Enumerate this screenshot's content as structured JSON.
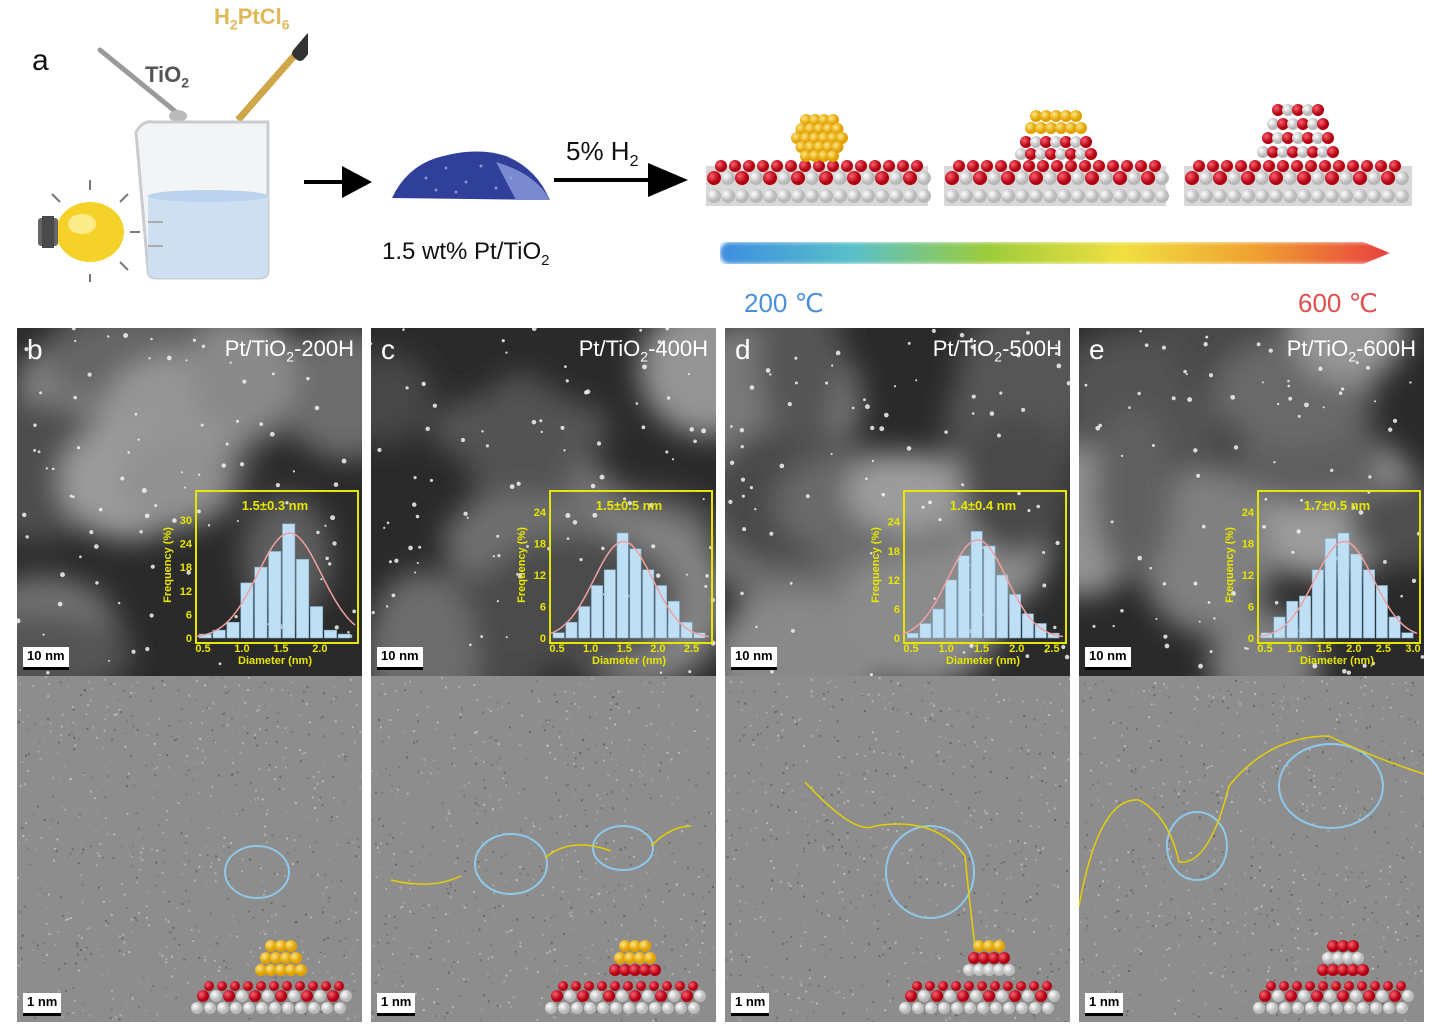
{
  "panel_a": {
    "letter": "a",
    "precursor": "H2PtCl6",
    "support": "TiO2",
    "gas_label": "5% H",
    "gas_sub": "2",
    "product_label_main": "1.5 wt% Pt/TiO",
    "product_label_sub": "2",
    "temp_low": "200 ℃",
    "temp_high": "600 ℃",
    "colors": {
      "low": "#4a90d9",
      "high": "#e05050",
      "pt": "#f2b800",
      "oxygen": "#d01020",
      "ti": "#e8e8e8"
    }
  },
  "panels": [
    {
      "letter": "b",
      "title_main": "Pt/TiO",
      "title_sub": "2",
      "title_tail": "-200H",
      "mean": "1.5±0.3 nm",
      "xticks": [
        "0.5",
        "1.0",
        "1.5",
        "2.0"
      ],
      "yticks": [
        "0",
        "6",
        "12",
        "18",
        "24",
        "30"
      ],
      "bars": [
        1,
        2,
        4,
        14,
        18,
        22,
        29,
        20,
        8,
        2,
        1
      ],
      "ymax": 32,
      "xmin": 0.5,
      "xmax": 2.4
    },
    {
      "letter": "c",
      "title_main": "Pt/TiO",
      "title_sub": "2",
      "title_tail": "-400H",
      "mean": "1.5±0.5 nm",
      "xticks": [
        "0.5",
        "1.0",
        "1.5",
        "2.0",
        "2.5"
      ],
      "yticks": [
        "0",
        "6",
        "12",
        "18",
        "24"
      ],
      "bars": [
        1,
        3,
        6,
        10,
        13,
        20,
        17,
        13,
        10,
        7,
        3,
        1
      ],
      "ymax": 24,
      "xmin": 0.5,
      "xmax": 2.7
    },
    {
      "letter": "d",
      "title_main": "Pt/TiO",
      "title_sub": "2",
      "title_tail": "-500H",
      "mean": "1.4±0.4 nm",
      "xticks": [
        "0.5",
        "1.0",
        "1.5",
        "2.0",
        "2.5"
      ],
      "yticks": [
        "0",
        "6",
        "12",
        "18",
        "24"
      ],
      "bars": [
        1,
        3,
        6,
        12,
        17,
        22,
        19,
        13,
        9,
        5,
        3,
        1
      ],
      "ymax": 26,
      "xmin": 0.5,
      "xmax": 2.6
    },
    {
      "letter": "e",
      "title_main": "Pt/TiO",
      "title_sub": "2",
      "title_tail": "-600H",
      "mean": "1.7±0.5 nm",
      "xticks": [
        "0.5",
        "1.0",
        "1.5",
        "2.0",
        "2.5",
        "3.0"
      ],
      "yticks": [
        "0",
        "6",
        "12",
        "18",
        "24"
      ],
      "bars": [
        1,
        4,
        7,
        8,
        13,
        19,
        20,
        16,
        13,
        10,
        4,
        1
      ],
      "ymax": 24,
      "xmin": 0.5,
      "xmax": 3.0
    }
  ],
  "hist_axes": {
    "xlabel": "Diameter (nm)",
    "ylabel": "Frequency (%)"
  },
  "scalebar_stem": "10 nm",
  "scalebar_hrtem": "1 nm"
}
